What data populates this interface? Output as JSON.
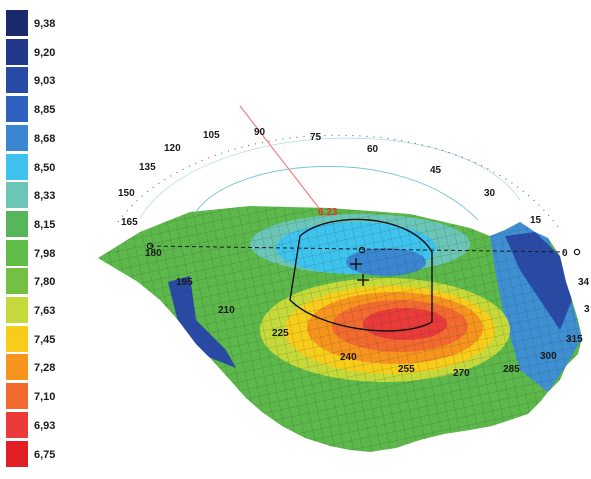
{
  "legend": {
    "items": [
      {
        "label": "9,38",
        "color": "#1b2a6b"
      },
      {
        "label": "9,20",
        "color": "#22388a"
      },
      {
        "label": "9,03",
        "color": "#2a4aa8"
      },
      {
        "label": "8,85",
        "color": "#2f62bf"
      },
      {
        "label": "8,68",
        "color": "#3a86d0"
      },
      {
        "label": "8,50",
        "color": "#3ec3ef"
      },
      {
        "label": "8,33",
        "color": "#6cc6b8"
      },
      {
        "label": "8,15",
        "color": "#57b65b"
      },
      {
        "label": "7,98",
        "color": "#5fbd47"
      },
      {
        "label": "7,80",
        "color": "#74c043"
      },
      {
        "label": "7,63",
        "color": "#c6d93a"
      },
      {
        "label": "7,45",
        "color": "#f8cc1b"
      },
      {
        "label": "7,28",
        "color": "#f7941d"
      },
      {
        "label": "7,10",
        "color": "#f26a2f"
      },
      {
        "label": "6,93",
        "color": "#ea3a3a"
      },
      {
        "label": "6,75",
        "color": "#e31f26"
      }
    ]
  },
  "ring_labels": [
    "120",
    "105",
    "90",
    "75",
    "60",
    "45",
    "30",
    "15",
    "0",
    "135",
    "150",
    "165",
    "180"
  ],
  "map_labels": [
    "195",
    "210",
    "225",
    "240",
    "255",
    "270",
    "285",
    "300",
    "315",
    "34",
    "3"
  ],
  "apex_value": "6.23"
}
